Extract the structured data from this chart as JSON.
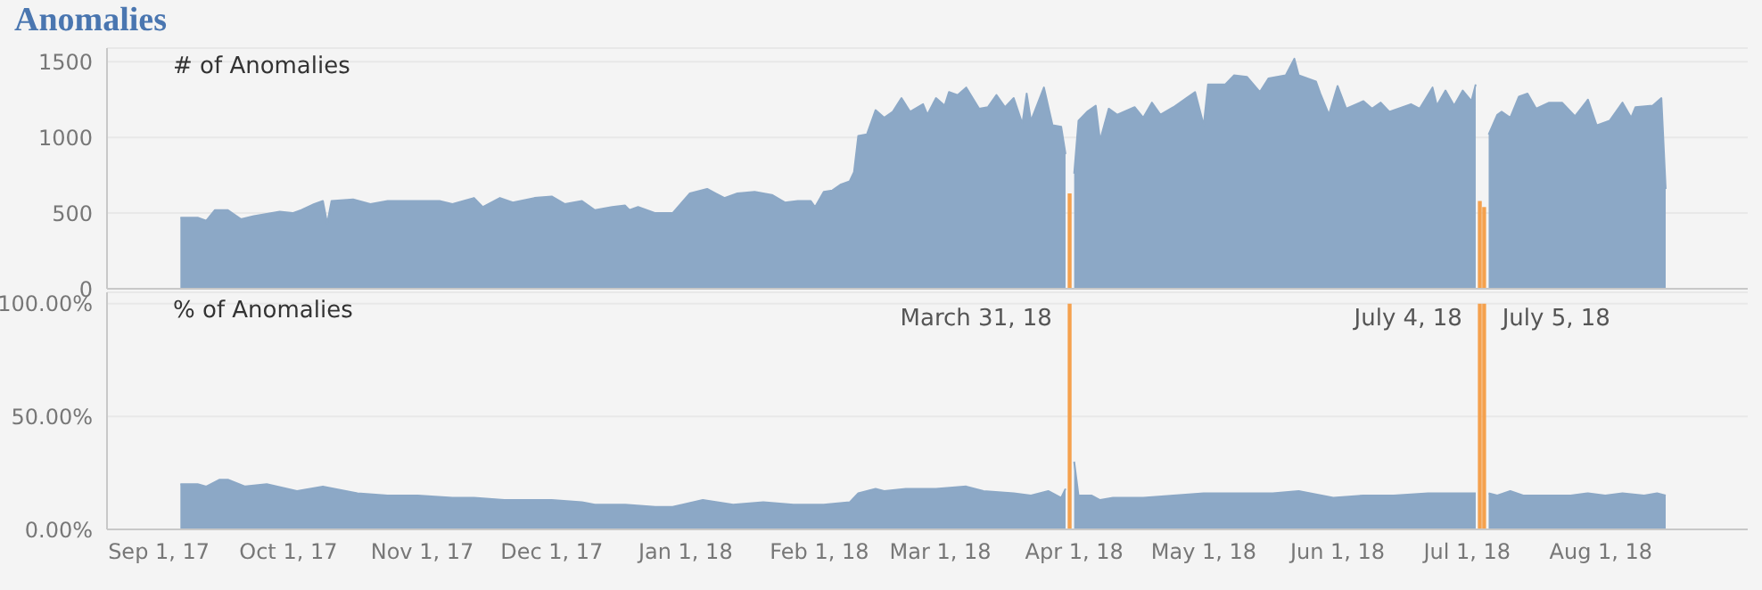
{
  "chart_data": [
    {
      "type": "area",
      "title": "Anomalies",
      "ylabel": "# of Anomalies",
      "xlim": [
        "2017-08-20",
        "2018-09-04"
      ],
      "ylim": [
        0,
        1590
      ],
      "yticks": [
        0,
        500,
        1000,
        1500
      ],
      "grid": "y",
      "tick_labels": "y",
      "series": [
        {
          "color": "#8ca8c6",
          "x": [
            "2017-09-06",
            "2017-09-10",
            "2017-09-12",
            "2017-09-14",
            "2017-09-17",
            "2017-09-20",
            "2017-09-23",
            "2017-09-29",
            "2017-10-02",
            "2017-10-04",
            "2017-10-07",
            "2017-10-09",
            "2017-10-10",
            "2017-10-11",
            "2017-10-16",
            "2017-10-20",
            "2017-10-24",
            "2017-10-31",
            "2017-11-05",
            "2017-11-08",
            "2017-11-13",
            "2017-11-15",
            "2017-11-19",
            "2017-11-22",
            "2017-11-27",
            "2017-12-01",
            "2017-12-04",
            "2017-12-08",
            "2017-12-11",
            "2017-12-15",
            "2017-12-18",
            "2017-12-19",
            "2017-12-21",
            "2017-12-25",
            "2017-12-29",
            "2018-01-02",
            "2018-01-06",
            "2018-01-08",
            "2018-01-10",
            "2018-01-13",
            "2018-01-17",
            "2018-01-21",
            "2018-01-24",
            "2018-01-27",
            "2018-01-30",
            "2018-01-31",
            "2018-02-02",
            "2018-02-04",
            "2018-02-06",
            "2018-02-08",
            "2018-02-09",
            "2018-02-10",
            "2018-02-12",
            "2018-02-14",
            "2018-02-16",
            "2018-02-18",
            "2018-02-20",
            "2018-02-22",
            "2018-02-25",
            "2018-02-26",
            "2018-02-28",
            "2018-03-02",
            "2018-03-03",
            "2018-03-05",
            "2018-03-07",
            "2018-03-10",
            "2018-03-12",
            "2018-03-14",
            "2018-03-16",
            "2018-03-18",
            "2018-03-20",
            "2018-03-21",
            "2018-03-22",
            "2018-03-25",
            "2018-03-27",
            "2018-03-29",
            "2018-03-30",
            "2018-03-31",
            "2018-04-01",
            "2018-04-02",
            "2018-04-04",
            "2018-04-06",
            "2018-04-07",
            "2018-04-09",
            "2018-04-11",
            "2018-04-15",
            "2018-04-17",
            "2018-04-19",
            "2018-04-21",
            "2018-04-24",
            "2018-04-27",
            "2018-04-29",
            "2018-05-01",
            "2018-05-02",
            "2018-05-06",
            "2018-05-08",
            "2018-05-11",
            "2018-05-14",
            "2018-05-16",
            "2018-05-20",
            "2018-05-22",
            "2018-05-23",
            "2018-05-27",
            "2018-05-28",
            "2018-05-30",
            "2018-06-01",
            "2018-06-03",
            "2018-06-07",
            "2018-06-09",
            "2018-06-11",
            "2018-06-13",
            "2018-06-18",
            "2018-06-20",
            "2018-06-23",
            "2018-06-24",
            "2018-06-26",
            "2018-06-28",
            "2018-06-30",
            "2018-07-02",
            "2018-07-03",
            "2018-07-04",
            "2018-07-05",
            "2018-07-06",
            "2018-07-08",
            "2018-07-09",
            "2018-07-11",
            "2018-07-13",
            "2018-07-15",
            "2018-07-17",
            "2018-07-20",
            "2018-07-23",
            "2018-07-26",
            "2018-07-29",
            "2018-07-31",
            "2018-08-03",
            "2018-08-06",
            "2018-08-08",
            "2018-08-09",
            "2018-08-13",
            "2018-08-15",
            "2018-08-16"
          ],
          "values": [
            470,
            470,
            450,
            520,
            520,
            460,
            480,
            510,
            500,
            520,
            560,
            580,
            430,
            580,
            590,
            560,
            580,
            580,
            580,
            560,
            600,
            540,
            600,
            570,
            600,
            610,
            560,
            580,
            520,
            540,
            550,
            520,
            540,
            500,
            500,
            630,
            660,
            630,
            600,
            630,
            640,
            620,
            570,
            580,
            580,
            540,
            640,
            650,
            690,
            710,
            770,
            1010,
            1020,
            1180,
            1130,
            1170,
            1260,
            1170,
            1220,
            1150,
            1260,
            1210,
            1300,
            1280,
            1330,
            1190,
            1200,
            1280,
            1200,
            1260,
            1090,
            1290,
            1110,
            1330,
            1080,
            1070,
            890,
            null,
            760,
            1110,
            1170,
            1210,
            980,
            1190,
            1150,
            1200,
            1130,
            1230,
            1150,
            1200,
            1260,
            1300,
            1080,
            1350,
            1350,
            1410,
            1400,
            1300,
            1390,
            1410,
            1520,
            1410,
            1370,
            1290,
            1150,
            1340,
            1190,
            1240,
            1190,
            1230,
            1170,
            1220,
            1190,
            1330,
            1210,
            1310,
            1210,
            1310,
            1240,
            1350,
            null,
            null,
            1020,
            1150,
            1170,
            1130,
            1270,
            1290,
            1190,
            1230,
            1230,
            1140,
            1250,
            1080,
            1110,
            1230,
            1130,
            1200,
            1210,
            1260,
            660
          ]
        },
        {
          "type": "bar",
          "color": "#f5a14d",
          "x": [
            "2018-03-31",
            "2018-07-04",
            "2018-07-05"
          ],
          "values": [
            630,
            580,
            540
          ]
        }
      ]
    },
    {
      "type": "area",
      "ylabel": "% of Anomalies",
      "xlim": [
        "2017-08-20",
        "2018-09-04"
      ],
      "ylim": [
        0,
        105
      ],
      "yticks": [
        {
          "value": 0,
          "label": "0.00%"
        },
        {
          "value": 50,
          "label": "50.00%"
        },
        {
          "value": 100,
          "label": "100.00%"
        }
      ],
      "xticks": [
        {
          "value": "2017-09-01",
          "label": "Sep 1, 17"
        },
        {
          "value": "2017-10-01",
          "label": "Oct 1, 17"
        },
        {
          "value": "2017-11-01",
          "label": "Nov 1, 17"
        },
        {
          "value": "2017-12-01",
          "label": "Dec 1, 17"
        },
        {
          "value": "2018-01-01",
          "label": "Jan 1, 18"
        },
        {
          "value": "2018-02-01",
          "label": "Feb 1, 18"
        },
        {
          "value": "2018-03-01",
          "label": "Mar 1, 18"
        },
        {
          "value": "2018-04-01",
          "label": "Apr 1, 18"
        },
        {
          "value": "2018-05-01",
          "label": "May 1, 18"
        },
        {
          "value": "2018-06-01",
          "label": "Jun 1, 18"
        },
        {
          "value": "2018-07-01",
          "label": "Jul 1, 18"
        },
        {
          "value": "2018-08-01",
          "label": "Aug 1, 18"
        }
      ],
      "grid": "y",
      "annotations": [
        {
          "text": "March 31, 18",
          "x": "2018-03-31",
          "y": 94
        },
        {
          "text": "July 4, 18",
          "x": "2018-07-04",
          "y": 94
        },
        {
          "text": "July 5, 18",
          "x": "2018-07-05",
          "y": 94
        }
      ],
      "series": [
        {
          "color": "#8ca8c6",
          "x": [
            "2017-09-06",
            "2017-09-10",
            "2017-09-12",
            "2017-09-15",
            "2017-09-17",
            "2017-09-21",
            "2017-09-26",
            "2017-10-03",
            "2017-10-09",
            "2017-10-17",
            "2017-10-24",
            "2017-10-31",
            "2017-11-08",
            "2017-11-13",
            "2017-11-20",
            "2017-12-01",
            "2017-12-08",
            "2017-12-11",
            "2017-12-18",
            "2017-12-25",
            "2017-12-29",
            "2018-01-05",
            "2018-01-12",
            "2018-01-19",
            "2018-01-26",
            "2018-02-02",
            "2018-02-08",
            "2018-02-10",
            "2018-02-14",
            "2018-02-16",
            "2018-02-21",
            "2018-02-28",
            "2018-03-07",
            "2018-03-11",
            "2018-03-18",
            "2018-03-22",
            "2018-03-26",
            "2018-03-29",
            "2018-03-30",
            "2018-03-31",
            "2018-04-01",
            "2018-04-02",
            "2018-04-05",
            "2018-04-07",
            "2018-04-10",
            "2018-04-17",
            "2018-04-24",
            "2018-05-01",
            "2018-05-09",
            "2018-05-17",
            "2018-05-23",
            "2018-05-31",
            "2018-06-07",
            "2018-06-14",
            "2018-06-22",
            "2018-06-27",
            "2018-07-02",
            "2018-07-03",
            "2018-07-04",
            "2018-07-05",
            "2018-07-06",
            "2018-07-08",
            "2018-07-11",
            "2018-07-14",
            "2018-07-20",
            "2018-07-25",
            "2018-07-29",
            "2018-08-02",
            "2018-08-06",
            "2018-08-11",
            "2018-08-14",
            "2018-08-16"
          ],
          "values": [
            20,
            20,
            19,
            22,
            22,
            19,
            20,
            17,
            19,
            16,
            15,
            15,
            14,
            14,
            13,
            13,
            12,
            11,
            11,
            10,
            10,
            13,
            11,
            12,
            11,
            11,
            12,
            16,
            18,
            17,
            18,
            18,
            19,
            17,
            16,
            15,
            17,
            14,
            18,
            null,
            30,
            15,
            15,
            13,
            14,
            14,
            15,
            16,
            16,
            16,
            17,
            14,
            15,
            15,
            16,
            16,
            16,
            16,
            null,
            null,
            16,
            15,
            17,
            15,
            15,
            15,
            16,
            15,
            16,
            15,
            16,
            15
          ]
        },
        {
          "type": "bar",
          "color": "#f5a14d",
          "x": [
            "2018-03-31",
            "2018-07-04",
            "2018-07-05"
          ],
          "values": [
            100,
            100,
            100
          ]
        }
      ]
    }
  ]
}
